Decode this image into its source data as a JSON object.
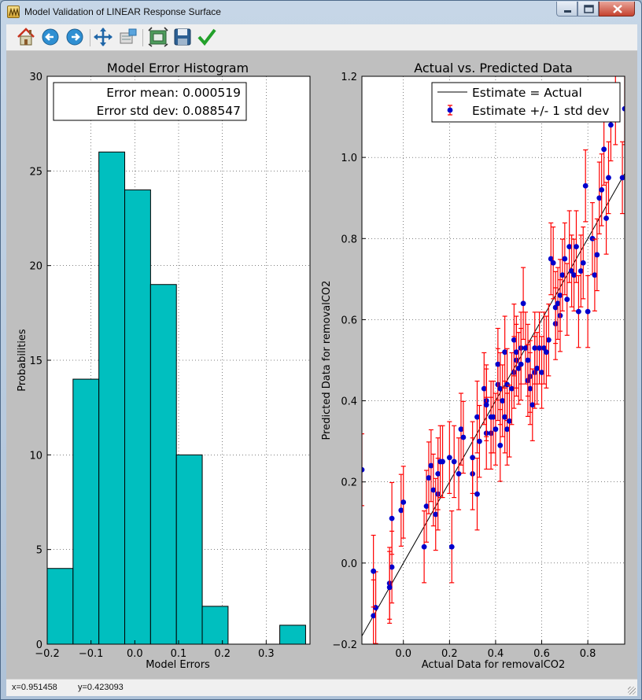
{
  "window": {
    "title": "Model Validation of LINEAR Response Surface"
  },
  "toolbar": {
    "buttons": [
      {
        "name": "home",
        "icon": "home-icon"
      },
      {
        "name": "back",
        "icon": "arrow-left-icon"
      },
      {
        "name": "forward",
        "icon": "arrow-right-icon"
      },
      {
        "name": "pan",
        "icon": "move-icon"
      },
      {
        "name": "zoom",
        "icon": "zoom-rect-icon"
      },
      {
        "name": "configure",
        "icon": "configure-subplots-icon"
      },
      {
        "name": "save",
        "icon": "save-icon"
      },
      {
        "name": "check",
        "icon": "checkmark-icon"
      }
    ]
  },
  "status": {
    "x_text": "x=0.951458",
    "y_text": "y=0.423093"
  },
  "colors": {
    "hist_bar": "#00bfbf",
    "scatter_point": "#0000cc",
    "error_bar": "#ff0000",
    "line": "#000000"
  },
  "chart_data": [
    {
      "type": "bar",
      "title": "Model Error Histogram",
      "xlabel": "Model Errors",
      "ylabel": "Probabilities",
      "xlim": [
        -0.2,
        0.4
      ],
      "ylim": [
        0,
        30
      ],
      "xticks": [
        "−0.2",
        "−0.1",
        "0.0",
        "0.1",
        "0.2",
        "0.3"
      ],
      "yticks": [
        "0",
        "5",
        "10",
        "15",
        "20",
        "25",
        "30"
      ],
      "grid": true,
      "bin_edges": [
        -0.2,
        -0.141,
        -0.082,
        -0.023,
        0.036,
        0.095,
        0.154,
        0.213,
        0.272,
        0.331,
        0.39
      ],
      "values": [
        4,
        14,
        26,
        24,
        19,
        10,
        2,
        0,
        0,
        1
      ],
      "legend_lines": [
        "Error mean: 0.000519",
        "Error std dev: 0.088547"
      ],
      "legend_position": "top"
    },
    {
      "type": "scatter",
      "title": "Actual vs. Predicted Data",
      "xlabel": "Actual Data for removalCO2",
      "ylabel": "Predicted Data for removalCO2",
      "xlim": [
        -0.18,
        0.96
      ],
      "ylim": [
        -0.2,
        1.2
      ],
      "xticks": [
        "0.0",
        "0.2",
        "0.4",
        "0.6",
        "0.8"
      ],
      "yticks": [
        "−0.2",
        "0.0",
        "0.2",
        "0.4",
        "0.6",
        "0.8",
        "1.0",
        "1.2"
      ],
      "grid": true,
      "legend_position": "top-right",
      "legend": [
        "Estimate = Actual",
        "Estimate +/- 1 std dev"
      ],
      "identity_line": [
        [
          -0.18,
          -0.18
        ],
        [
          0.96,
          0.96
        ]
      ],
      "error_std": 0.0885,
      "points": [
        [
          -0.13,
          -0.13
        ],
        [
          -0.12,
          -0.11
        ],
        [
          -0.13,
          -0.02
        ],
        [
          -0.06,
          -0.05
        ],
        [
          -0.05,
          -0.01
        ],
        [
          -0.06,
          -0.06
        ],
        [
          -0.05,
          0.11
        ],
        [
          -0.01,
          0.13
        ],
        [
          0.0,
          0.15
        ],
        [
          0.09,
          0.04
        ],
        [
          0.1,
          0.14
        ],
        [
          0.11,
          0.21
        ],
        [
          0.12,
          0.24
        ],
        [
          0.13,
          0.18
        ],
        [
          0.14,
          0.12
        ],
        [
          0.15,
          0.17
        ],
        [
          0.15,
          0.22
        ],
        [
          0.16,
          0.25
        ],
        [
          0.17,
          0.25
        ],
        [
          0.2,
          0.26
        ],
        [
          0.21,
          0.04
        ],
        [
          0.24,
          0.22
        ],
        [
          0.25,
          0.33
        ],
        [
          0.26,
          0.31
        ],
        [
          0.3,
          0.22
        ],
        [
          0.3,
          0.26
        ],
        [
          0.32,
          0.17
        ],
        [
          0.32,
          0.36
        ],
        [
          0.33,
          0.3
        ],
        [
          0.35,
          0.43
        ],
        [
          0.36,
          0.32
        ],
        [
          0.36,
          0.4
        ],
        [
          0.38,
          0.32
        ],
        [
          0.38,
          0.36
        ],
        [
          0.39,
          0.36
        ],
        [
          0.4,
          0.33
        ],
        [
          0.41,
          0.44
        ],
        [
          0.41,
          0.49
        ],
        [
          0.42,
          0.29
        ],
        [
          0.42,
          0.43
        ],
        [
          0.43,
          0.4
        ],
        [
          0.44,
          0.52
        ],
        [
          0.44,
          0.36
        ],
        [
          0.45,
          0.33
        ],
        [
          0.45,
          0.44
        ],
        [
          0.46,
          0.35
        ],
        [
          0.47,
          0.43
        ],
        [
          0.48,
          0.47
        ],
        [
          0.48,
          0.55
        ],
        [
          0.49,
          0.5
        ],
        [
          0.49,
          0.52
        ],
        [
          0.5,
          0.48
        ],
        [
          0.51,
          0.53
        ],
        [
          0.51,
          0.49
        ],
        [
          0.52,
          0.64
        ],
        [
          0.53,
          0.53
        ],
        [
          0.54,
          0.45
        ],
        [
          0.55,
          0.46
        ],
        [
          0.55,
          0.43
        ],
        [
          0.56,
          0.39
        ],
        [
          0.57,
          0.47
        ],
        [
          0.57,
          0.53
        ],
        [
          0.58,
          0.48
        ],
        [
          0.59,
          0.53
        ],
        [
          0.6,
          0.47
        ],
        [
          0.61,
          0.53
        ],
        [
          0.63,
          0.55
        ],
        [
          0.64,
          0.75
        ],
        [
          0.65,
          0.74
        ],
        [
          0.66,
          0.59
        ],
        [
          0.66,
          0.63
        ],
        [
          0.67,
          0.64
        ],
        [
          0.68,
          0.61
        ],
        [
          0.68,
          0.66
        ],
        [
          0.69,
          0.71
        ],
        [
          0.7,
          0.75
        ],
        [
          0.71,
          0.65
        ],
        [
          0.72,
          0.78
        ],
        [
          0.73,
          0.72
        ],
        [
          0.74,
          0.71
        ],
        [
          0.75,
          0.78
        ],
        [
          0.76,
          0.62
        ],
        [
          0.77,
          0.72
        ],
        [
          0.78,
          0.74
        ],
        [
          0.79,
          0.93
        ],
        [
          0.8,
          0.62
        ],
        [
          0.82,
          0.8
        ],
        [
          0.83,
          0.71
        ],
        [
          0.84,
          0.76
        ],
        [
          0.85,
          0.9
        ],
        [
          0.86,
          0.92
        ],
        [
          0.87,
          1.02
        ],
        [
          0.88,
          0.85
        ],
        [
          0.89,
          0.95
        ],
        [
          0.9,
          1.08
        ],
        [
          0.92,
          1.12
        ],
        [
          0.95,
          0.95
        ],
        [
          0.96,
          1.12
        ],
        [
          0.97,
          0.99
        ],
        [
          -0.18,
          0.23
        ],
        [
          0.22,
          0.25
        ],
        [
          0.36,
          0.39
        ],
        [
          0.54,
          0.5
        ],
        [
          0.62,
          0.52
        ]
      ]
    }
  ]
}
